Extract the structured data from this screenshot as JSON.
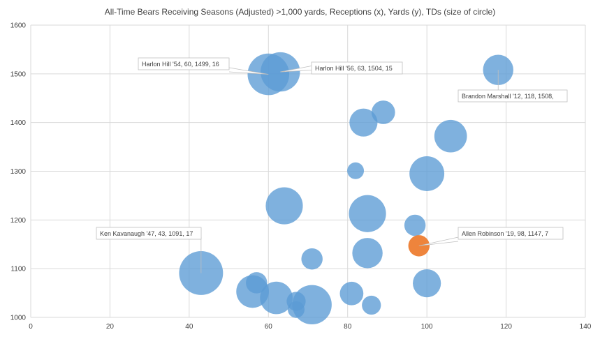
{
  "chart_data": {
    "type": "scatter",
    "bubble": true,
    "title": "All-Time  Bears Receiving Seasons (Adjusted) >1,000 yards, Receptions (x), Yards (y), TDs (size of circle)",
    "xlabel": "",
    "ylabel": "",
    "xlim": [
      0,
      140
    ],
    "ylim": [
      1000,
      1600
    ],
    "xticks": [
      0,
      20,
      40,
      60,
      80,
      100,
      120,
      140
    ],
    "yticks": [
      1000,
      1100,
      1200,
      1300,
      1400,
      1500,
      1600
    ],
    "grid": true,
    "colors": {
      "default": "#5b9bd5",
      "highlight": "#ed7d31",
      "gridline": "#d9d9d9",
      "text": "#404040"
    },
    "points": [
      {
        "x": 60,
        "y": 1499,
        "td": 16
      },
      {
        "x": 63,
        "y": 1504,
        "td": 15
      },
      {
        "x": 118,
        "y": 1508,
        "td": 11
      },
      {
        "x": 89,
        "y": 1421,
        "td": 8
      },
      {
        "x": 84,
        "y": 1400,
        "td": 10
      },
      {
        "x": 106,
        "y": 1372,
        "td": 12
      },
      {
        "x": 82,
        "y": 1301,
        "td": 5
      },
      {
        "x": 100,
        "y": 1295,
        "td": 13
      },
      {
        "x": 64,
        "y": 1229,
        "td": 14
      },
      {
        "x": 85,
        "y": 1213,
        "td": 14
      },
      {
        "x": 97,
        "y": 1189,
        "td": 7
      },
      {
        "x": 98,
        "y": 1147,
        "td": 7,
        "highlight": true
      },
      {
        "x": 85,
        "y": 1132,
        "td": 11
      },
      {
        "x": 71,
        "y": 1120,
        "td": 7
      },
      {
        "x": 43,
        "y": 1091,
        "td": 17
      },
      {
        "x": 57,
        "y": 1071,
        "td": 7
      },
      {
        "x": 100,
        "y": 1070,
        "td": 10
      },
      {
        "x": 56,
        "y": 1053,
        "td": 12
      },
      {
        "x": 81,
        "y": 1049,
        "td": 8
      },
      {
        "x": 62,
        "y": 1040,
        "td": 12
      },
      {
        "x": 67,
        "y": 1033,
        "td": 6
      },
      {
        "x": 86,
        "y": 1025,
        "td": 6
      },
      {
        "x": 71,
        "y": 1026,
        "td": 15
      },
      {
        "x": 67,
        "y": 1016,
        "td": 5
      }
    ],
    "annotations": [
      {
        "text": "Harlon Hill '54, 60, 1499, 16"
      },
      {
        "text": "Harlon Hill '56, 63, 1504, 15"
      },
      {
        "text": "Brandon Marshall '12, 118, 1508,"
      },
      {
        "text": "Ken Kavanaugh '47, 43, 1091, 17"
      },
      {
        "text": "Allen Robinson '19, 98, 1147, 7"
      }
    ]
  }
}
